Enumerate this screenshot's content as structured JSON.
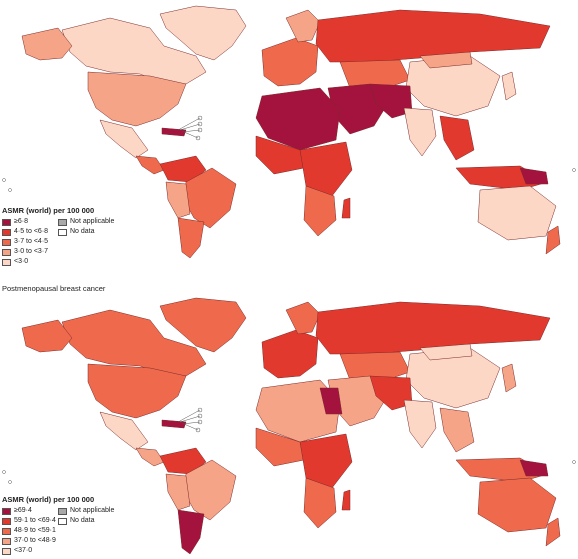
{
  "panels": [
    {
      "id": "top",
      "title": "",
      "legend": {
        "title": "ASMR (world) per 100 000",
        "items": [
          {
            "label": "≥6·8",
            "color": "#a4123e"
          },
          {
            "label": "4·5 to <6·8",
            "color": "#e2392f"
          },
          {
            "label": "3·7 to <4·5",
            "color": "#ef6a4c"
          },
          {
            "label": "3·0 to <3·7",
            "color": "#f6a487"
          },
          {
            "label": "<3·0",
            "color": "#fcd7c6"
          }
        ],
        "extra": [
          {
            "label": "Not applicable",
            "color": "#a9a9a9"
          },
          {
            "label": "No data",
            "color": "#ffffff"
          }
        ]
      }
    },
    {
      "id": "bottom",
      "title": "Postmenopausal breast cancer",
      "legend": {
        "title": "ASMR (world) per 100 000",
        "items": [
          {
            "label": "≥69·4",
            "color": "#a4123e"
          },
          {
            "label": "59·1 to <69·4",
            "color": "#e2392f"
          },
          {
            "label": "48·9 to <59·1",
            "color": "#ef6a4c"
          },
          {
            "label": "37·0 to <48·9",
            "color": "#f6a487"
          },
          {
            "label": "<37·0",
            "color": "#fcd7c6"
          }
        ],
        "extra": [
          {
            "label": "Not applicable",
            "color": "#a9a9a9"
          },
          {
            "label": "No data",
            "color": "#ffffff"
          }
        ]
      }
    }
  ]
}
